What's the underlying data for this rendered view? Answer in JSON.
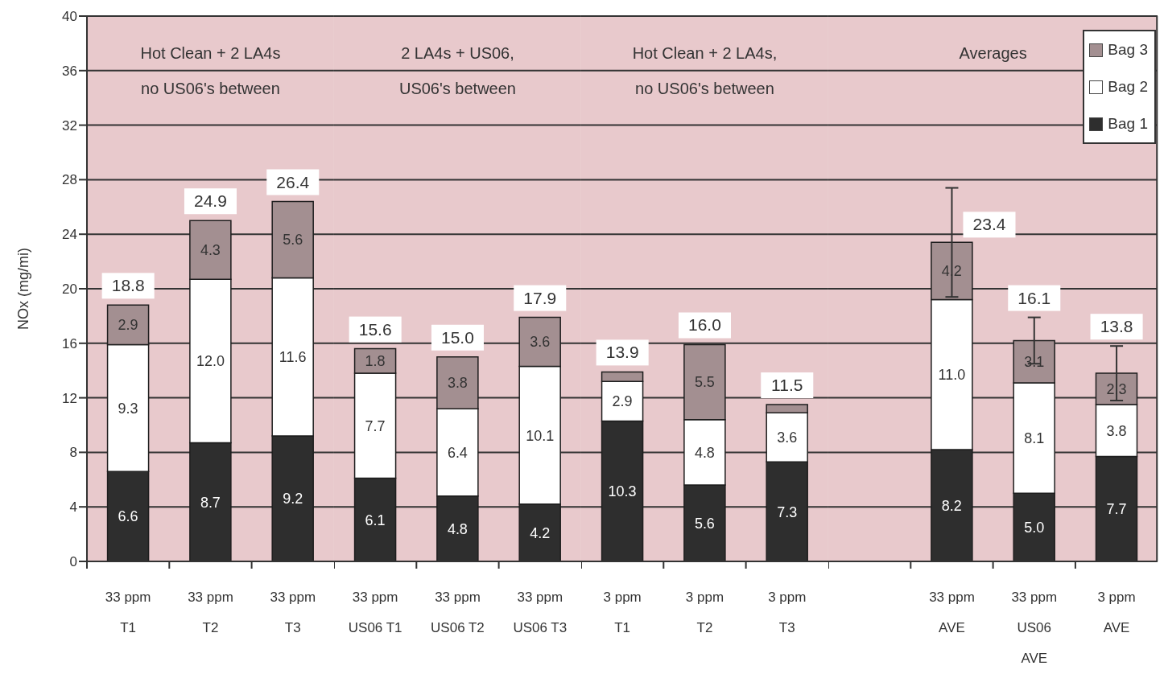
{
  "chart_data": [
    {
      "type": "bar",
      "stacked": true,
      "title": "Hot Clean + 2 LA4s\nno US06's between",
      "ylabel": "NOx (mg/mi)",
      "categories": [
        "33 ppm T1",
        "33 ppm T2",
        "33 ppm T3"
      ],
      "series": [
        {
          "color": "#2e2e2e",
          "values": [
            6.6,
            8.7,
            9.2
          ],
          "value_labels": [
            "6.6",
            "8.7",
            "9.2"
          ]
        },
        {
          "color": "#ffffff",
          "values": [
            9.3,
            12.0,
            11.6
          ],
          "value_labels": [
            "9.3",
            "12.0",
            "11.6"
          ]
        },
        {
          "color": "#a38f91",
          "values": [
            2.9,
            4.3,
            5.6
          ],
          "value_labels": [
            "2.9",
            "4.3",
            "5.6"
          ]
        }
      ],
      "totals": [
        "18.8",
        "24.9",
        "26.4"
      ],
      "ylim": [
        0,
        40
      ],
      "yticks": [
        0,
        4,
        8,
        12,
        16,
        20,
        24,
        28,
        32,
        36,
        40
      ],
      "grid": "y"
    },
    {
      "type": "bar",
      "stacked": true,
      "title": "2 LA4s + US06,\nUS06's between",
      "categories": [
        "33 ppm US06 T1",
        "33 ppm US06 T2",
        "33 ppm US06 T3"
      ],
      "series": [
        {
          "color": "#2e2e2e",
          "values": [
            6.1,
            4.8,
            4.2
          ],
          "value_labels": [
            "6.1",
            "4.8",
            "4.2"
          ]
        },
        {
          "color": "#ffffff",
          "values": [
            7.7,
            6.4,
            10.1
          ],
          "value_labels": [
            "7.7",
            "6.4",
            "10.1"
          ]
        },
        {
          "color": "#a38f91",
          "values": [
            1.8,
            3.8,
            3.6
          ],
          "value_labels": [
            "1.8",
            "3.8",
            "3.6"
          ]
        }
      ],
      "totals": [
        "15.6",
        "15.0",
        "17.9"
      ],
      "ylim": [
        0,
        40
      ],
      "yticks": [
        0,
        4,
        8,
        12,
        16,
        20,
        24,
        28,
        32,
        36,
        40
      ],
      "grid": "y",
      "tick_labels": "x"
    },
    {
      "type": "bar",
      "stacked": true,
      "title": "Hot Clean + 2 LA4s,\nno US06's between",
      "categories": [
        "3 ppm T1",
        "3 ppm T2",
        "3 ppm T3"
      ],
      "series": [
        {
          "color": "#2e2e2e",
          "values": [
            10.3,
            5.6,
            7.3
          ],
          "value_labels": [
            "10.3",
            "5.6",
            "7.3"
          ]
        },
        {
          "color": "#ffffff",
          "values": [
            2.9,
            4.8,
            3.6
          ],
          "value_labels": [
            "2.9",
            "4.8",
            "3.6"
          ]
        },
        {
          "color": "#a38f91",
          "values": [
            0.7,
            5.5,
            0.6
          ],
          "value_labels": [
            null,
            "5.5",
            null
          ]
        }
      ],
      "totals": [
        "13.9",
        "16.0",
        "11.5"
      ],
      "ylim": [
        0,
        40
      ],
      "yticks": [
        0,
        4,
        8,
        12,
        16,
        20,
        24,
        28,
        32,
        36,
        40
      ],
      "grid": "y",
      "tick_labels": "x"
    },
    {
      "type": "bar",
      "stacked": true,
      "title": "Averages",
      "categories": [
        null,
        "33 ppm AVE",
        "33 ppm US06 AVE",
        "3 ppm AVE"
      ],
      "series": [
        {
          "name": "Bag 1",
          "color": "#2e2e2e",
          "values": [
            null,
            8.2,
            5.0,
            7.7
          ],
          "value_labels": [
            null,
            "8.2",
            "5.0",
            "7.7"
          ]
        },
        {
          "name": "Bag 2",
          "color": "#ffffff",
          "values": [
            null,
            11.0,
            8.1,
            3.8
          ],
          "value_labels": [
            null,
            "11.0",
            "8.1",
            "3.8"
          ]
        },
        {
          "name": "Bag 3",
          "color": "#a38f91",
          "values": [
            null,
            4.2,
            3.1,
            2.3
          ],
          "value_labels": [
            null,
            "4.2",
            "3.1",
            "2.3"
          ],
          "errors": [
            null,
            4.0,
            1.7,
            2.0
          ]
        }
      ],
      "totals": [
        null,
        "23.4",
        "16.1",
        "13.8"
      ],
      "ylim": [
        0,
        40
      ],
      "yticks": [
        0,
        4,
        8,
        12,
        16,
        20,
        24,
        28,
        32,
        36,
        40
      ],
      "grid": "y",
      "tick_labels": "x",
      "legend": "top right"
    }
  ]
}
